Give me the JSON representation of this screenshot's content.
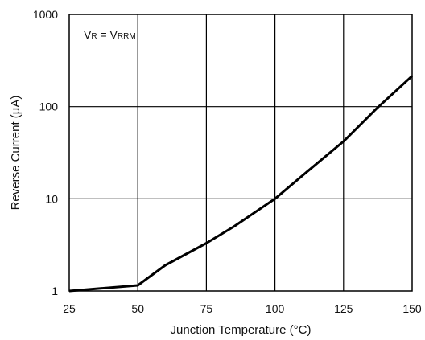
{
  "chart_data": {
    "type": "line",
    "xlabel": "Junction Temperature (°C)",
    "ylabel": "Reverse Current (µA)",
    "x_scale": "linear",
    "y_scale": "log",
    "xlim": [
      25,
      150
    ],
    "ylim": [
      1,
      1000
    ],
    "x_ticks": [
      25,
      50,
      75,
      100,
      125,
      150
    ],
    "y_ticks": [
      1,
      10,
      100,
      1000
    ],
    "x_tick_labels": [
      "25",
      "50",
      "75",
      "100",
      "125",
      "150"
    ],
    "y_tick_labels": [
      "1",
      "10",
      "100",
      "1000"
    ],
    "grid": true,
    "annotation": {
      "main_left": "V",
      "sub_left": "R",
      "eq": " = V",
      "sub_right": "RRM"
    },
    "series": [
      {
        "x": [
          25,
          50,
          60,
          75,
          85,
          100,
          112,
          125,
          137,
          150
        ],
        "y": [
          1.0,
          1.15,
          1.9,
          3.3,
          5.0,
          10.0,
          20.0,
          42.0,
          95.0,
          215.0
        ],
        "color": "#000000"
      }
    ]
  }
}
